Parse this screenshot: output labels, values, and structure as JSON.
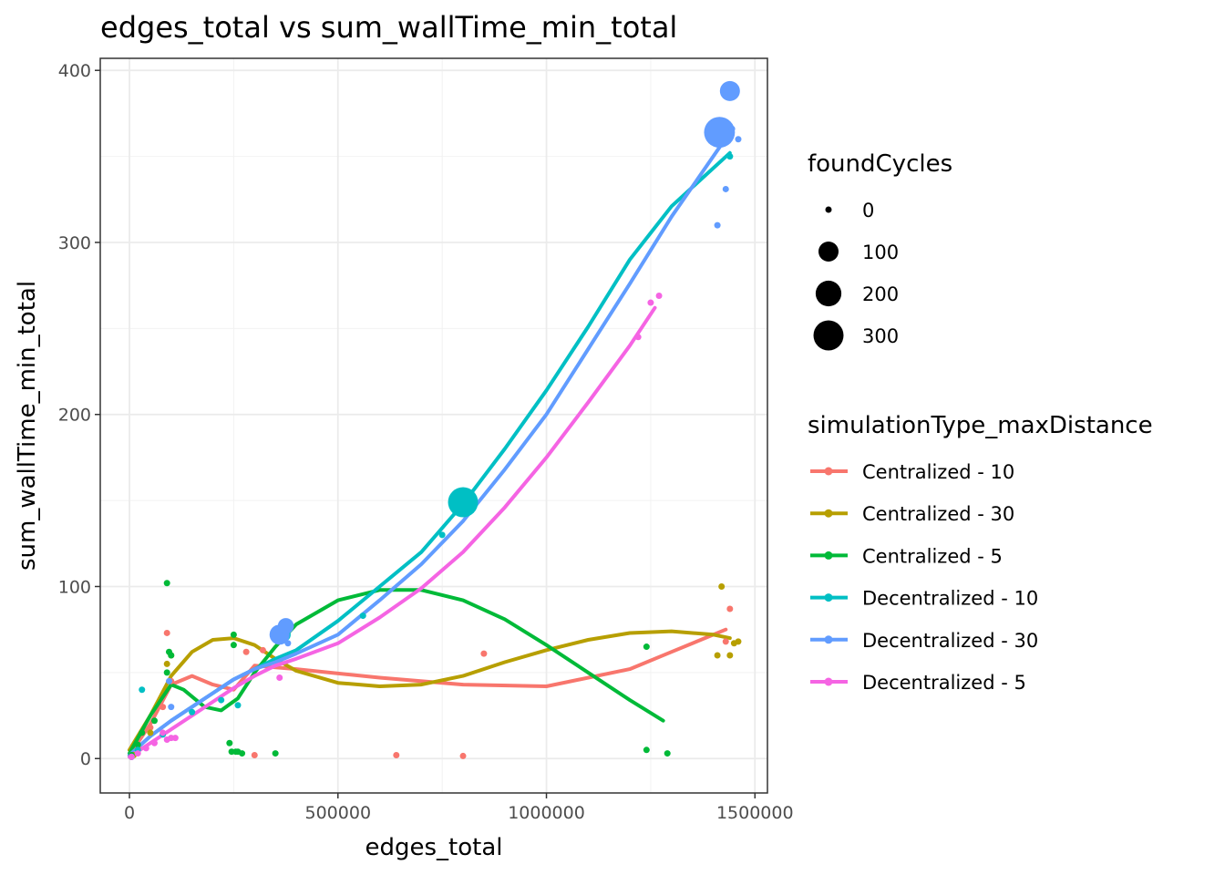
{
  "chart_data": {
    "type": "scatter",
    "title": "edges_total  vs  sum_wallTime_min_total",
    "xlabel": "edges_total",
    "ylabel": "sum_wallTime_min_total",
    "xlim": [
      -70000,
      1530000
    ],
    "ylim": [
      -20,
      407
    ],
    "xticks": [
      0,
      500000,
      1000000,
      1500000
    ],
    "xtick_labels": [
      "0",
      "500000",
      "1000000",
      "1500000"
    ],
    "yticks": [
      0,
      100,
      200,
      300,
      400
    ],
    "ytick_labels": [
      "0",
      "100",
      "200",
      "300",
      "400"
    ],
    "grid": true,
    "legend_position": "right",
    "size_legend": {
      "title": "foundCycles",
      "items": [
        {
          "label": "0",
          "value": 0
        },
        {
          "label": "100",
          "value": 100
        },
        {
          "label": "200",
          "value": 200
        },
        {
          "label": "300",
          "value": 300
        }
      ]
    },
    "color_legend": {
      "title": "simulationType_maxDistance"
    },
    "series": [
      {
        "name": "Centralized - 10",
        "color": "#F8766D",
        "points": [
          [
            5000,
            1,
            0
          ],
          [
            20000,
            6,
            0
          ],
          [
            50000,
            18,
            0
          ],
          [
            80000,
            30,
            0
          ],
          [
            90000,
            73,
            0
          ],
          [
            100000,
            45,
            0
          ],
          [
            280000,
            62,
            0
          ],
          [
            300000,
            2,
            0
          ],
          [
            320000,
            63,
            0
          ],
          [
            640000,
            2,
            0
          ],
          [
            800000,
            1.5,
            0
          ],
          [
            850000,
            61,
            0
          ],
          [
            1430000,
            68,
            0
          ],
          [
            1440000,
            87,
            0
          ]
        ],
        "smooth": [
          [
            0,
            2
          ],
          [
            50000,
            20
          ],
          [
            100000,
            43
          ],
          [
            150000,
            48
          ],
          [
            200000,
            43
          ],
          [
            250000,
            40
          ],
          [
            300000,
            54
          ],
          [
            400000,
            52
          ],
          [
            600000,
            47
          ],
          [
            800000,
            43
          ],
          [
            1000000,
            42
          ],
          [
            1200000,
            52
          ],
          [
            1300000,
            62
          ],
          [
            1430000,
            75
          ]
        ]
      },
      {
        "name": "Centralized - 30",
        "color": "#B79F00",
        "points": [
          [
            10000,
            2,
            0
          ],
          [
            50000,
            15,
            0
          ],
          [
            90000,
            55,
            0
          ],
          [
            100000,
            60,
            0
          ],
          [
            1410000,
            60,
            0
          ],
          [
            1420000,
            100,
            0
          ],
          [
            1440000,
            60,
            0
          ],
          [
            1450000,
            67,
            0
          ],
          [
            1460000,
            68,
            0
          ]
        ],
        "smooth": [
          [
            0,
            5
          ],
          [
            50000,
            25
          ],
          [
            100000,
            48
          ],
          [
            150000,
            62
          ],
          [
            200000,
            69
          ],
          [
            250000,
            70
          ],
          [
            300000,
            66
          ],
          [
            350000,
            58
          ],
          [
            400000,
            51
          ],
          [
            500000,
            44
          ],
          [
            600000,
            42
          ],
          [
            700000,
            43
          ],
          [
            800000,
            48
          ],
          [
            900000,
            56
          ],
          [
            1000000,
            63
          ],
          [
            1100000,
            69
          ],
          [
            1200000,
            73
          ],
          [
            1300000,
            74
          ],
          [
            1400000,
            72
          ],
          [
            1440000,
            70
          ]
        ]
      },
      {
        "name": "Centralized - 5",
        "color": "#00BA38",
        "points": [
          [
            5000,
            2,
            0
          ],
          [
            20000,
            8,
            0
          ],
          [
            30000,
            15,
            0
          ],
          [
            60000,
            22,
            0
          ],
          [
            90000,
            102,
            0
          ],
          [
            90000,
            50,
            0
          ],
          [
            95000,
            62,
            0
          ],
          [
            100000,
            60,
            0
          ],
          [
            250000,
            72,
            0
          ],
          [
            250000,
            66,
            0
          ],
          [
            240000,
            9,
            0
          ],
          [
            245000,
            4,
            0
          ],
          [
            255000,
            4,
            0
          ],
          [
            260000,
            4,
            0
          ],
          [
            270000,
            3,
            0
          ],
          [
            350000,
            3,
            0
          ],
          [
            1240000,
            65,
            0
          ],
          [
            1240000,
            5,
            0
          ],
          [
            1290000,
            3,
            0
          ]
        ],
        "smooth": [
          [
            0,
            3
          ],
          [
            50000,
            25
          ],
          [
            100000,
            43
          ],
          [
            130000,
            40
          ],
          [
            180000,
            30
          ],
          [
            220000,
            28
          ],
          [
            260000,
            35
          ],
          [
            300000,
            50
          ],
          [
            350000,
            65
          ],
          [
            400000,
            78
          ],
          [
            500000,
            92
          ],
          [
            600000,
            98
          ],
          [
            700000,
            98
          ],
          [
            800000,
            92
          ],
          [
            900000,
            81
          ],
          [
            1000000,
            66
          ],
          [
            1100000,
            50
          ],
          [
            1200000,
            34
          ],
          [
            1280000,
            22
          ]
        ]
      },
      {
        "name": "Decentralized - 10",
        "color": "#00BFC4",
        "points": [
          [
            5000,
            1,
            0
          ],
          [
            20000,
            5,
            0
          ],
          [
            30000,
            40,
            0
          ],
          [
            80000,
            14,
            0
          ],
          [
            150000,
            27,
            0
          ],
          [
            220000,
            34,
            0
          ],
          [
            260000,
            31,
            0
          ],
          [
            370000,
            72,
            30
          ],
          [
            560000,
            83,
            0
          ],
          [
            750000,
            130,
            0
          ],
          [
            800000,
            149,
            300
          ],
          [
            1440000,
            350,
            0
          ]
        ],
        "smooth": [
          [
            0,
            2
          ],
          [
            50000,
            13
          ],
          [
            100000,
            22
          ],
          [
            150000,
            30
          ],
          [
            200000,
            38
          ],
          [
            250000,
            46
          ],
          [
            300000,
            52
          ],
          [
            350000,
            58
          ],
          [
            400000,
            63
          ],
          [
            500000,
            80
          ],
          [
            600000,
            100
          ],
          [
            700000,
            120
          ],
          [
            800000,
            148
          ],
          [
            900000,
            180
          ],
          [
            1000000,
            214
          ],
          [
            1100000,
            251
          ],
          [
            1200000,
            290
          ],
          [
            1300000,
            321
          ],
          [
            1440000,
            352
          ]
        ]
      },
      {
        "name": "Decentralized - 30",
        "color": "#619CFF",
        "points": [
          [
            5000,
            1,
            0
          ],
          [
            95000,
            45,
            0
          ],
          [
            100000,
            30,
            0
          ],
          [
            360000,
            72,
            100
          ],
          [
            375000,
            77,
            50
          ],
          [
            380000,
            67,
            0
          ],
          [
            1410000,
            310,
            0
          ],
          [
            1415000,
            364,
            320
          ],
          [
            1430000,
            331,
            0
          ],
          [
            1440000,
            388,
            100
          ],
          [
            1445000,
            366,
            0
          ],
          [
            1460000,
            360,
            0
          ]
        ],
        "smooth": [
          [
            0,
            2
          ],
          [
            50000,
            13
          ],
          [
            100000,
            22
          ],
          [
            150000,
            30
          ],
          [
            200000,
            38
          ],
          [
            250000,
            46
          ],
          [
            300000,
            52
          ],
          [
            350000,
            56
          ],
          [
            400000,
            61
          ],
          [
            500000,
            72
          ],
          [
            600000,
            92
          ],
          [
            700000,
            113
          ],
          [
            800000,
            138
          ],
          [
            900000,
            168
          ],
          [
            1000000,
            200
          ],
          [
            1100000,
            238
          ],
          [
            1200000,
            276
          ],
          [
            1300000,
            315
          ],
          [
            1440000,
            364
          ]
        ]
      },
      {
        "name": "Decentralized - 5",
        "color": "#F564E3",
        "points": [
          [
            5000,
            1,
            0
          ],
          [
            20000,
            3,
            0
          ],
          [
            40000,
            6,
            0
          ],
          [
            60000,
            9,
            0
          ],
          [
            80000,
            15,
            0
          ],
          [
            90000,
            11,
            0
          ],
          [
            100000,
            12,
            0
          ],
          [
            110000,
            12,
            0
          ],
          [
            360000,
            47,
            0
          ],
          [
            1220000,
            245,
            0
          ],
          [
            1250000,
            265,
            0
          ],
          [
            1270000,
            269,
            0
          ]
        ],
        "smooth": [
          [
            0,
            1
          ],
          [
            50000,
            9
          ],
          [
            100000,
            17
          ],
          [
            150000,
            25
          ],
          [
            200000,
            33
          ],
          [
            250000,
            41
          ],
          [
            300000,
            48
          ],
          [
            350000,
            54
          ],
          [
            400000,
            58
          ],
          [
            500000,
            67
          ],
          [
            600000,
            82
          ],
          [
            700000,
            99
          ],
          [
            800000,
            120
          ],
          [
            900000,
            146
          ],
          [
            1000000,
            175
          ],
          [
            1100000,
            207
          ],
          [
            1200000,
            240
          ],
          [
            1260000,
            262
          ]
        ]
      }
    ]
  }
}
